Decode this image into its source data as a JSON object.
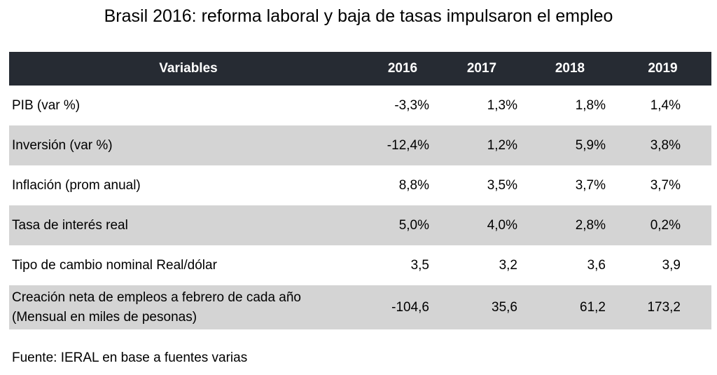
{
  "title": "Brasil 2016:  reforma laboral y baja de tasas impulsaron el empleo",
  "colors": {
    "header_bg": "#262b33",
    "stripe_bg": "#d4d4d4",
    "header_text": "#ffffff"
  },
  "chart_data": {
    "type": "table",
    "title": "Brasil 2016:  reforma laboral y baja de tasas impulsaron el empleo",
    "columns": [
      "Variables",
      "2016",
      "2017",
      "2018",
      "2019"
    ],
    "rows": [
      {
        "label": "PIB (var %)",
        "values": [
          "-3,3%",
          "1,3%",
          "1,8%",
          "1,4%"
        ]
      },
      {
        "label": "Inversión (var %)",
        "values": [
          "-12,4%",
          "1,2%",
          "5,9%",
          "3,8%"
        ]
      },
      {
        "label": "Inflación (prom anual)",
        "values": [
          "8,8%",
          "3,5%",
          "3,7%",
          "3,7%"
        ]
      },
      {
        "label": "Tasa de interés real",
        "values": [
          "5,0%",
          "4,0%",
          "2,8%",
          "0,2%"
        ]
      },
      {
        "label": "Tipo de cambio nominal Real/dólar",
        "values": [
          "3,5",
          "3,2",
          "3,6",
          "3,9"
        ]
      },
      {
        "label": "Creación neta de empleos a febrero de cada año",
        "label_line2": "(Mensual en miles de pesonas)",
        "values": [
          "-104,6",
          "35,6",
          "61,2",
          "173,2"
        ]
      }
    ],
    "source": "Fuente: IERAL en base a fuentes varias"
  }
}
